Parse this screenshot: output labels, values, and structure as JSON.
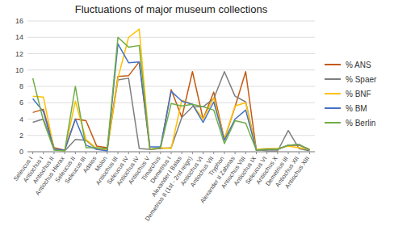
{
  "chart_data": {
    "type": "line",
    "title": "Fluctuations of major museum collections",
    "categories": [
      "Seleucus I",
      "Antiochus I",
      "Antiochus II",
      "Antiochus Hierax",
      "Seleucus II",
      "Seleucus III",
      "Adaios",
      "Molon",
      "Antiochus III",
      "Seleucus IV",
      "Antiochus IV",
      "Antiochus V",
      "Timarchus",
      "Demetrius I",
      "Alexander I Balas",
      "Demetrios II (1st - 2nd reign)",
      "Antiochus VI",
      "Antiochus VII",
      "Tryphon",
      "Alexander II Zabinas",
      "Antiochus VIII",
      "Antiochus IX",
      "Seleucus VI",
      "Antiochus X",
      "Demetrius III",
      "Antiochus XII",
      "Antiochus XIII"
    ],
    "series": [
      {
        "name": "% ANS",
        "color": "#C55A11",
        "values": [
          4.8,
          5.2,
          0.5,
          0.2,
          4.0,
          3.8,
          0.7,
          0.5,
          9.2,
          9.3,
          11.0,
          0.3,
          0.4,
          7.6,
          4.2,
          9.8,
          4.0,
          7.3,
          1.5,
          5.5,
          9.8,
          0.2,
          0.3,
          0.3,
          0.8,
          0.8,
          0.3
        ]
      },
      {
        "name": "% Spaer",
        "color": "#7F7F7F",
        "values": [
          3.6,
          4.0,
          0.4,
          0.1,
          1.5,
          1.4,
          0.3,
          0.4,
          8.8,
          9.0,
          0.4,
          0.3,
          0.4,
          0.5,
          4.2,
          5.5,
          5.5,
          6.5,
          9.8,
          6.8,
          6.1,
          0.3,
          0.1,
          0.1,
          2.6,
          0.4,
          0.1
        ]
      },
      {
        "name": "% BNF",
        "color": "#FFC000",
        "values": [
          6.8,
          6.7,
          0.3,
          0.1,
          6.2,
          1.5,
          0.4,
          0.2,
          9.0,
          14.0,
          15.0,
          0.3,
          0.5,
          0.4,
          6.3,
          5.8,
          4.0,
          6.6,
          1.5,
          5.6,
          6.0,
          0.3,
          0.4,
          0.4,
          0.7,
          0.5,
          0.3
        ]
      },
      {
        "name": "% BM",
        "color": "#4472C4",
        "values": [
          6.5,
          4.9,
          0.3,
          0.2,
          4.0,
          0.8,
          0.3,
          0.1,
          13.2,
          10.9,
          11.0,
          0.6,
          0.6,
          7.4,
          6.2,
          5.8,
          3.6,
          6.1,
          1.4,
          4.0,
          5.1,
          0.2,
          0.3,
          0.3,
          0.8,
          0.9,
          0.2
        ]
      },
      {
        "name": "% Berlin",
        "color": "#70AD47",
        "values": [
          9.0,
          3.8,
          0.2,
          0.1,
          8.0,
          0.5,
          0.5,
          0.4,
          14.0,
          12.8,
          13.0,
          0.3,
          0.5,
          5.9,
          5.6,
          5.8,
          5.5,
          5.1,
          1.0,
          3.8,
          3.5,
          0.2,
          0.3,
          0.3,
          0.8,
          0.9,
          0.2
        ]
      }
    ],
    "ylim": [
      0,
      16
    ],
    "yticks": [
      0,
      2,
      4,
      6,
      8,
      10,
      12,
      14,
      16
    ],
    "grid": true,
    "legend": "right"
  }
}
